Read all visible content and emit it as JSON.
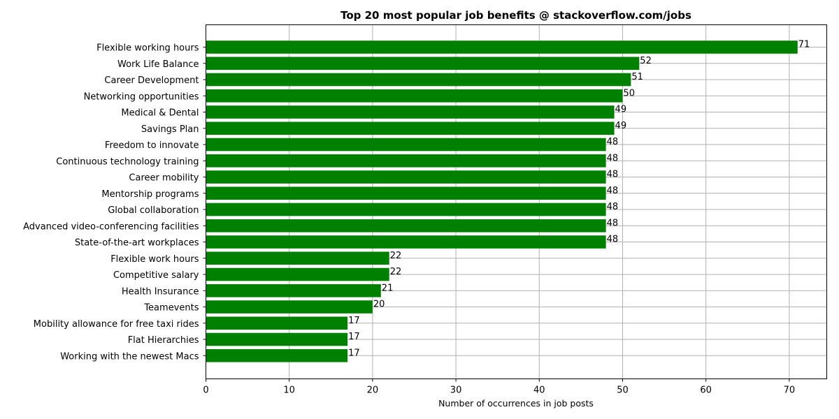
{
  "chart_data": {
    "type": "bar",
    "orientation": "horizontal",
    "title": "Top 20 most popular job benefits @ stackoverflow.com/jobs",
    "xlabel": "Number of occurrences in job posts",
    "ylabel": "",
    "xlim": [
      0,
      74.5
    ],
    "xticks": [
      0,
      10,
      20,
      30,
      40,
      50,
      60,
      70
    ],
    "grid": true,
    "bar_color": "#008000",
    "categories": [
      "Flexible working hours",
      "Work Life Balance",
      "Career Development",
      "Networking opportunities",
      "Medical & Dental",
      "Savings Plan",
      "Freedom to innovate",
      "Continuous technology training",
      "Career mobility",
      "Mentorship programs",
      "Global collaboration",
      "Advanced video-conferencing facilities",
      "State-of-the-art workplaces",
      "Flexible work hours",
      "Competitive salary",
      "Health Insurance",
      "Teamevents",
      "Mobility allowance for free taxi rides",
      "Flat Hierarchies",
      "Working with the newest Macs"
    ],
    "values": [
      71,
      52,
      51,
      50,
      49,
      49,
      48,
      48,
      48,
      48,
      48,
      48,
      48,
      22,
      22,
      21,
      20,
      17,
      17,
      17
    ]
  }
}
